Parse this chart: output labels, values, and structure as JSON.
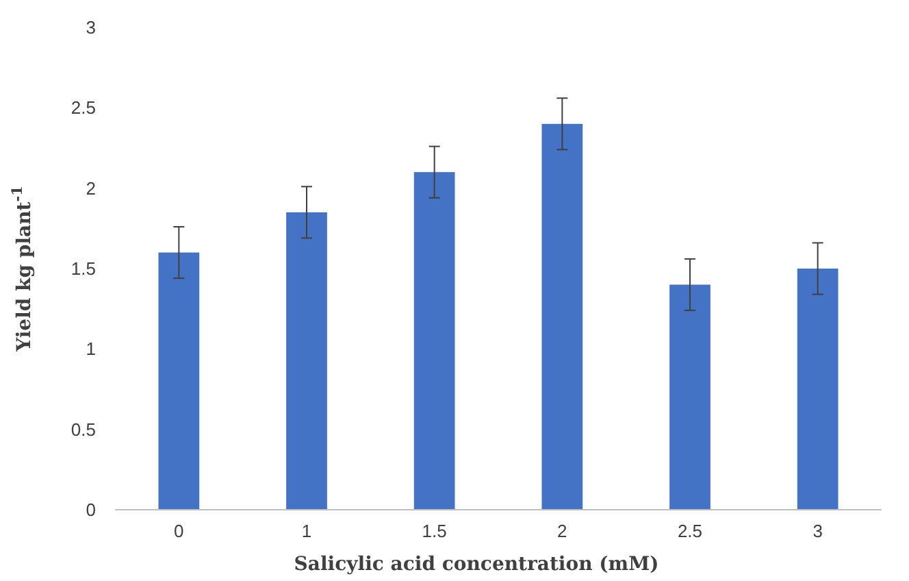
{
  "chart_data": {
    "type": "bar",
    "xlabel": "Salicylic acid concentration (mM)",
    "ylabel": "Yield kg plant$^{-1}$",
    "categories": [
      "0",
      "1",
      "1.5",
      "2",
      "2.5",
      "3"
    ],
    "values": [
      1.6,
      1.85,
      2.1,
      2.4,
      1.4,
      1.5
    ],
    "errors": [
      0.16,
      0.16,
      0.16,
      0.16,
      0.16,
      0.16
    ],
    "color": "#4472c4",
    "ylim": [
      0,
      3
    ],
    "yticks": [
      0,
      0.5,
      1,
      1.5,
      2,
      2.5,
      3
    ],
    "grid": false
  }
}
